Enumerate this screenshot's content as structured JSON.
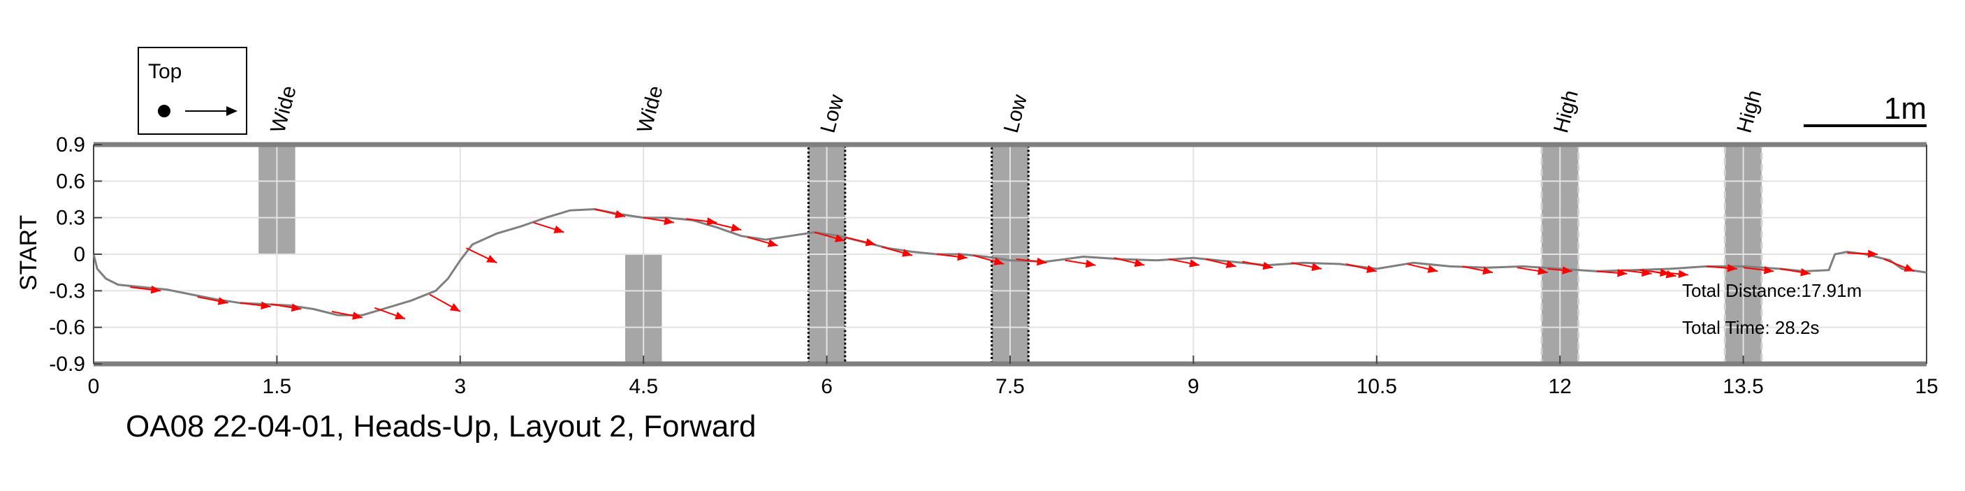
{
  "chart_data": {
    "type": "line",
    "title": "OA08 22-04-01, Heads-Up, Layout 2, Forward",
    "xlabel": "",
    "ylabel": "START",
    "xlim": [
      0,
      15
    ],
    "ylim": [
      -0.9,
      0.9
    ],
    "x_ticks": [
      "0",
      "1.5",
      "3",
      "4.5",
      "6",
      "7.5",
      "9",
      "10.5",
      "12",
      "13.5",
      "15"
    ],
    "y_ticks": [
      "0.9",
      "0.6",
      "0.3",
      "0",
      "-0.3",
      "-0.6",
      "-0.9"
    ],
    "grid": true,
    "legend": {
      "title": "Top",
      "placement": "top-left"
    },
    "scale_bar": {
      "label": "1m",
      "length_m": 1
    },
    "obstacles": [
      {
        "label": "Wide",
        "x_start": 1.35,
        "x_end": 1.65,
        "y_start": 0,
        "y_end": 0.9,
        "style": "plain"
      },
      {
        "label": "Wide",
        "x_start": 4.35,
        "x_end": 4.65,
        "y_start": -0.9,
        "y_end": 0,
        "style": "plain"
      },
      {
        "label": "Low",
        "x_start": 5.85,
        "x_end": 6.15,
        "y_start": -0.9,
        "y_end": 0.9,
        "style": "dotted-black"
      },
      {
        "label": "Low",
        "x_start": 7.35,
        "x_end": 7.65,
        "y_start": -0.9,
        "y_end": 0.9,
        "style": "dotted-black"
      },
      {
        "label": "High",
        "x_start": 11.85,
        "x_end": 12.15,
        "y_start": -0.9,
        "y_end": 0.9,
        "style": "dashed-light"
      },
      {
        "label": "High",
        "x_start": 13.35,
        "x_end": 13.65,
        "y_start": -0.9,
        "y_end": 0.9,
        "style": "dashed-light"
      }
    ],
    "series": [
      {
        "points": [
          [
            0,
            0
          ],
          [
            0.03,
            -0.12
          ],
          [
            0.1,
            -0.2
          ],
          [
            0.2,
            -0.25
          ],
          [
            0.4,
            -0.27
          ],
          [
            0.6,
            -0.29
          ],
          [
            0.8,
            -0.33
          ],
          [
            1.0,
            -0.37
          ],
          [
            1.2,
            -0.4
          ],
          [
            1.4,
            -0.41
          ],
          [
            1.6,
            -0.42
          ],
          [
            1.8,
            -0.45
          ],
          [
            2.0,
            -0.5
          ],
          [
            2.2,
            -0.5
          ],
          [
            2.4,
            -0.44
          ],
          [
            2.6,
            -0.38
          ],
          [
            2.8,
            -0.3
          ],
          [
            2.9,
            -0.2
          ],
          [
            3.0,
            -0.05
          ],
          [
            3.1,
            0.08
          ],
          [
            3.3,
            0.17
          ],
          [
            3.5,
            0.23
          ],
          [
            3.7,
            0.3
          ],
          [
            3.9,
            0.36
          ],
          [
            4.1,
            0.37
          ],
          [
            4.3,
            0.33
          ],
          [
            4.5,
            0.3
          ],
          [
            4.7,
            0.3
          ],
          [
            4.9,
            0.28
          ],
          [
            5.1,
            0.22
          ],
          [
            5.3,
            0.15
          ],
          [
            5.5,
            0.12
          ],
          [
            5.7,
            0.15
          ],
          [
            5.9,
            0.18
          ],
          [
            6.1,
            0.15
          ],
          [
            6.3,
            0.1
          ],
          [
            6.5,
            0.05
          ],
          [
            6.7,
            0.02
          ],
          [
            6.9,
            0.0
          ],
          [
            7.1,
            0.0
          ],
          [
            7.3,
            -0.02
          ],
          [
            7.5,
            -0.05
          ],
          [
            7.8,
            -0.06
          ],
          [
            8.1,
            -0.02
          ],
          [
            8.4,
            -0.04
          ],
          [
            8.7,
            -0.05
          ],
          [
            9.0,
            -0.03
          ],
          [
            9.3,
            -0.06
          ],
          [
            9.6,
            -0.09
          ],
          [
            9.9,
            -0.07
          ],
          [
            10.2,
            -0.08
          ],
          [
            10.5,
            -0.12
          ],
          [
            10.8,
            -0.07
          ],
          [
            11.1,
            -0.1
          ],
          [
            11.4,
            -0.11
          ],
          [
            11.7,
            -0.1
          ],
          [
            12.0,
            -0.12
          ],
          [
            12.3,
            -0.14
          ],
          [
            12.6,
            -0.13
          ],
          [
            12.9,
            -0.12
          ],
          [
            13.2,
            -0.1
          ],
          [
            13.5,
            -0.1
          ],
          [
            13.8,
            -0.12
          ],
          [
            14.0,
            -0.14
          ],
          [
            14.2,
            -0.13
          ],
          [
            14.25,
            0.0
          ],
          [
            14.35,
            0.02
          ],
          [
            14.5,
            0.0
          ],
          [
            14.7,
            -0.05
          ],
          [
            14.8,
            -0.12
          ],
          [
            15.0,
            -0.15
          ]
        ],
        "color": "#7f7f7f"
      }
    ],
    "direction_arrows": [
      [
        0.3,
        -0.27,
        0.55,
        -0.3
      ],
      [
        0.85,
        -0.35,
        1.1,
        -0.4
      ],
      [
        1.2,
        -0.4,
        1.45,
        -0.43
      ],
      [
        1.45,
        -0.41,
        1.7,
        -0.45
      ],
      [
        1.95,
        -0.47,
        2.2,
        -0.52
      ],
      [
        2.3,
        -0.44,
        2.55,
        -0.53
      ],
      [
        2.75,
        -0.33,
        3.0,
        -0.47
      ],
      [
        3.05,
        0.05,
        3.3,
        -0.07
      ],
      [
        3.6,
        0.26,
        3.85,
        0.18
      ],
      [
        4.1,
        0.37,
        4.35,
        0.31
      ],
      [
        4.5,
        0.3,
        4.75,
        0.26
      ],
      [
        4.85,
        0.29,
        5.1,
        0.26
      ],
      [
        5.05,
        0.26,
        5.3,
        0.2
      ],
      [
        5.35,
        0.14,
        5.6,
        0.07
      ],
      [
        5.9,
        0.18,
        6.15,
        0.11
      ],
      [
        6.15,
        0.14,
        6.4,
        0.08
      ],
      [
        6.45,
        0.06,
        6.7,
        -0.01
      ],
      [
        6.9,
        0.0,
        7.15,
        -0.03
      ],
      [
        7.2,
        -0.01,
        7.45,
        -0.08
      ],
      [
        7.55,
        -0.04,
        7.8,
        -0.07
      ],
      [
        7.95,
        -0.05,
        8.2,
        -0.09
      ],
      [
        8.35,
        -0.03,
        8.6,
        -0.09
      ],
      [
        8.8,
        -0.04,
        9.05,
        -0.09
      ],
      [
        9.1,
        -0.04,
        9.35,
        -0.1
      ],
      [
        9.4,
        -0.06,
        9.65,
        -0.11
      ],
      [
        9.8,
        -0.07,
        10.05,
        -0.12
      ],
      [
        10.25,
        -0.08,
        10.5,
        -0.14
      ],
      [
        10.75,
        -0.08,
        11.0,
        -0.14
      ],
      [
        11.2,
        -0.1,
        11.45,
        -0.15
      ],
      [
        11.65,
        -0.11,
        11.9,
        -0.15
      ],
      [
        11.9,
        -0.12,
        12.1,
        -0.14
      ],
      [
        12.3,
        -0.14,
        12.55,
        -0.16
      ],
      [
        12.5,
        -0.13,
        12.75,
        -0.16
      ],
      [
        12.65,
        -0.13,
        12.9,
        -0.16
      ],
      [
        12.75,
        -0.14,
        12.95,
        -0.18
      ],
      [
        12.85,
        -0.15,
        13.05,
        -0.17
      ],
      [
        13.2,
        -0.1,
        13.45,
        -0.12
      ],
      [
        13.5,
        -0.11,
        13.75,
        -0.14
      ],
      [
        13.8,
        -0.12,
        14.05,
        -0.16
      ],
      [
        14.35,
        0.01,
        14.6,
        0.0
      ],
      [
        14.65,
        -0.04,
        14.9,
        -0.14
      ]
    ],
    "annotations": [
      "Total Distance:17.91m",
      "Total Time: 28.2s"
    ]
  }
}
